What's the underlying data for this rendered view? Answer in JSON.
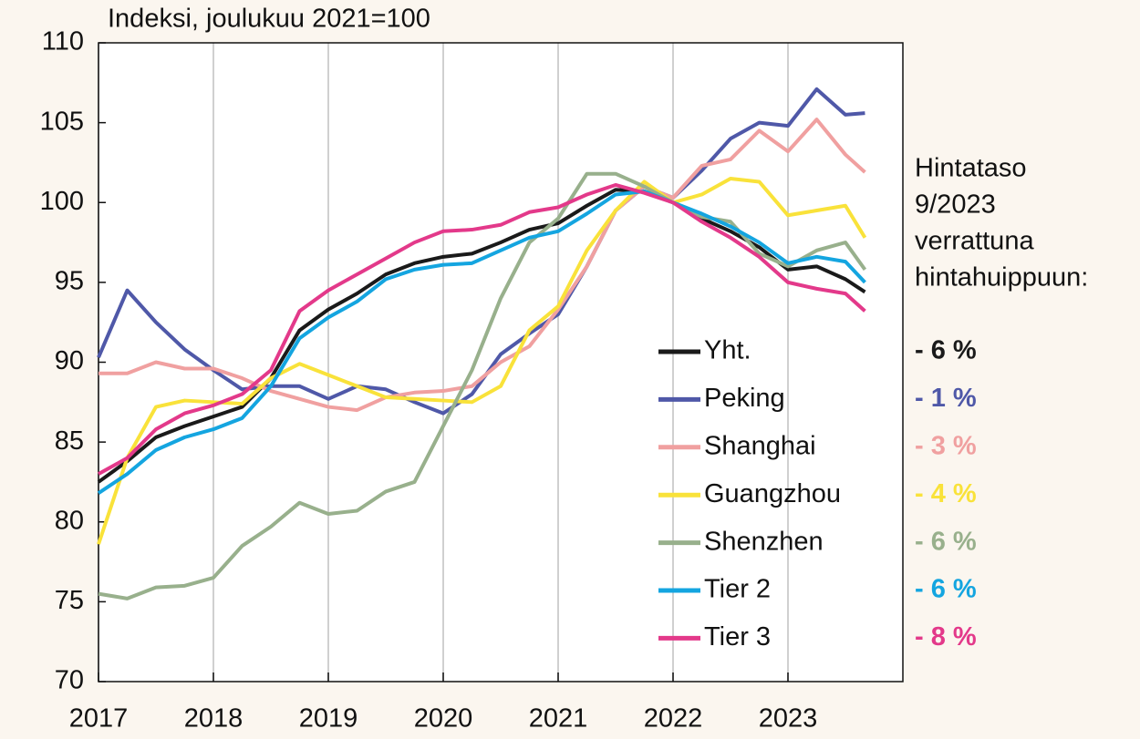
{
  "chart_data": {
    "type": "line",
    "title": "Indeksi, joulukuu 2021=100",
    "x": [
      2017,
      2017.25,
      2017.5,
      2017.75,
      2018,
      2018.25,
      2018.5,
      2018.75,
      2019,
      2019.25,
      2019.5,
      2019.75,
      2020,
      2020.25,
      2020.5,
      2020.75,
      2021,
      2021.25,
      2021.5,
      2021.75,
      2022,
      2022.25,
      2022.5,
      2022.75,
      2023,
      2023.25,
      2023.5,
      2023.67
    ],
    "series": [
      {
        "name": "Yht.",
        "color": "#1a1a1a",
        "values": [
          82.5,
          83.8,
          85.3,
          86.0,
          86.6,
          87.2,
          89.0,
          92.0,
          93.3,
          94.3,
          95.5,
          96.2,
          96.6,
          96.8,
          97.5,
          98.3,
          98.7,
          99.8,
          100.8,
          100.7,
          100,
          99.0,
          98.2,
          97.2,
          95.8,
          96.0,
          95.2,
          94.4
        ]
      },
      {
        "name": "Peking",
        "color": "#4f58a8",
        "values": [
          90.3,
          94.5,
          92.5,
          90.8,
          89.5,
          88.3,
          88.5,
          88.5,
          87.7,
          88.5,
          88.3,
          87.5,
          86.8,
          88.0,
          90.5,
          91.8,
          93.0,
          96.0,
          99.5,
          101.0,
          100.3,
          102.0,
          104.0,
          105.0,
          104.8,
          107.1,
          105.5,
          105.6
        ]
      },
      {
        "name": "Shanghai",
        "color": "#f0a0a0",
        "values": [
          89.3,
          89.3,
          90.0,
          89.6,
          89.6,
          89.0,
          88.2,
          87.7,
          87.2,
          87.0,
          87.8,
          88.1,
          88.2,
          88.5,
          90.0,
          91.0,
          93.3,
          96.0,
          99.5,
          101.0,
          100.3,
          102.3,
          102.7,
          104.5,
          103.2,
          105.2,
          103.0,
          101.9
        ]
      },
      {
        "name": "Guangzhou",
        "color": "#f9e23a",
        "values": [
          78.6,
          84.0,
          87.2,
          87.6,
          87.5,
          87.4,
          89.0,
          89.9,
          89.2,
          88.5,
          87.8,
          87.7,
          87.6,
          87.5,
          88.5,
          92.0,
          93.5,
          97.0,
          99.5,
          101.3,
          100,
          100.5,
          101.5,
          101.3,
          99.2,
          99.5,
          99.8,
          97.8
        ]
      },
      {
        "name": "Shenzhen",
        "color": "#98b08c",
        "values": [
          75.5,
          75.2,
          75.9,
          76.0,
          76.5,
          78.5,
          79.7,
          81.2,
          80.5,
          80.7,
          81.9,
          82.5,
          86.0,
          89.5,
          94.0,
          97.5,
          99.0,
          101.8,
          101.8,
          101.0,
          100,
          99.1,
          98.8,
          96.8,
          96.0,
          97.0,
          97.5,
          95.8
        ]
      },
      {
        "name": "Tier 2",
        "color": "#14a5e0",
        "values": [
          81.8,
          83.0,
          84.5,
          85.3,
          85.8,
          86.5,
          88.5,
          91.5,
          92.8,
          93.8,
          95.2,
          95.8,
          96.1,
          96.2,
          97.0,
          97.8,
          98.2,
          99.3,
          100.5,
          100.7,
          100,
          99.3,
          98.5,
          97.5,
          96.2,
          96.6,
          96.3,
          95.0
        ]
      },
      {
        "name": "Tier 3",
        "color": "#e3398a",
        "values": [
          83.0,
          84.0,
          85.8,
          86.8,
          87.3,
          88.0,
          89.5,
          93.2,
          94.5,
          95.5,
          96.5,
          97.5,
          98.2,
          98.3,
          98.6,
          99.4,
          99.7,
          100.5,
          101.1,
          100.6,
          100,
          98.8,
          97.8,
          96.6,
          95.0,
          94.6,
          94.3,
          93.2
        ]
      }
    ],
    "side_note": [
      "Hintataso",
      "9/2023",
      "verrattuna",
      "hintahuippuun:"
    ],
    "peak_change_labels": [
      "- 6 %",
      "- 1 %",
      "- 3 %",
      "- 4 %",
      "- 6 %",
      "- 6 %",
      "- 8 %"
    ],
    "xlim": [
      2017,
      2024
    ],
    "xticks": [
      2017,
      2018,
      2019,
      2020,
      2021,
      2022,
      2023
    ],
    "ylim": [
      70,
      110
    ],
    "yticks": [
      70,
      75,
      80,
      85,
      90,
      95,
      100,
      105,
      110
    ],
    "grid": true
  }
}
